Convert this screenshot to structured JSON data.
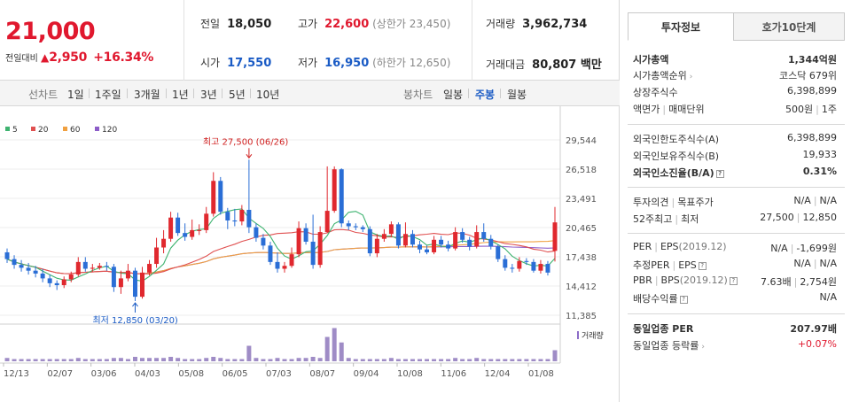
{
  "price": {
    "current": "21,000",
    "change_label": "전일대비",
    "change_arrow": "▲",
    "change_value": "2,950",
    "change_pct": "+16.34%",
    "prev_close_label": "전일",
    "prev_close": "18,050",
    "open_label": "시가",
    "open": "17,550",
    "high_label": "고가",
    "high": "22,600",
    "upper_limit": "(상한가 23,450)",
    "low_label": "저가",
    "low": "16,950",
    "lower_limit": "(하한가 12,650)",
    "volume_label": "거래량",
    "volume": "3,962,734",
    "amount_label": "거래대금",
    "amount": "80,807 백만"
  },
  "tabs": {
    "line_label": "선차트",
    "line_periods": [
      "1일",
      "1주일",
      "3개월",
      "1년",
      "3년",
      "5년",
      "10년"
    ],
    "candle_label": "봉차트",
    "candle_periods": [
      "일봉",
      "주봉",
      "월봉"
    ],
    "candle_active": "주봉"
  },
  "chart_data": {
    "type": "candlestick",
    "legend": [
      "5",
      "20",
      "60",
      "120"
    ],
    "legend_colors": [
      "#3eb370",
      "#e05050",
      "#f0a040",
      "#8c5cc8"
    ],
    "y_ticks": [
      "29,544",
      "26,518",
      "23,491",
      "20,465",
      "17,438",
      "14,412",
      "11,385"
    ],
    "ylim": [
      11385,
      29544
    ],
    "x_ticks": [
      "12/13",
      "02/07",
      "03/06",
      "04/03",
      "05/08",
      "06/05",
      "07/03",
      "08/07",
      "09/04",
      "10/08",
      "11/06",
      "12/04",
      "01/08"
    ],
    "high_annotation": "최고 27,500 (06/26)",
    "low_annotation": "최저 12,850 (03/20)",
    "volume_label": "거래량",
    "candles": [
      [
        17900,
        17200,
        18300,
        16800
      ],
      [
        17200,
        16600,
        17600,
        16200
      ],
      [
        16600,
        16300,
        17100,
        15900
      ],
      [
        16300,
        16000,
        16800,
        15600
      ],
      [
        16000,
        15700,
        16500,
        15300
      ],
      [
        15700,
        15200,
        16200,
        14800
      ],
      [
        15200,
        14700,
        15600,
        14300
      ],
      [
        14700,
        14500,
        15000,
        14000
      ],
      [
        14500,
        15100,
        15400,
        14200
      ],
      [
        15100,
        15600,
        15900,
        14800
      ],
      [
        15600,
        16900,
        17400,
        15400
      ],
      [
        16900,
        16200,
        17400,
        15900
      ],
      [
        16200,
        16300,
        16700,
        15900
      ],
      [
        16300,
        16500,
        16800,
        16100
      ],
      [
        16500,
        16400,
        16900,
        16000
      ],
      [
        16400,
        14300,
        16700,
        13800
      ],
      [
        14300,
        15200,
        16000,
        13600
      ],
      [
        15200,
        16000,
        16700,
        14900
      ],
      [
        16000,
        13300,
        16300,
        12850
      ],
      [
        13300,
        15800,
        16400,
        13100
      ],
      [
        15800,
        16700,
        17100,
        15500
      ],
      [
        16700,
        18400,
        19400,
        16300
      ],
      [
        18400,
        19300,
        20200,
        17800
      ],
      [
        19300,
        21500,
        22100,
        19000
      ],
      [
        21500,
        19900,
        22000,
        19600
      ],
      [
        19900,
        19500,
        20900,
        19100
      ],
      [
        19500,
        20200,
        21300,
        19200
      ],
      [
        20200,
        20200,
        20800,
        19700
      ],
      [
        20200,
        21900,
        22600,
        19900
      ],
      [
        21900,
        25300,
        26200,
        21600
      ],
      [
        25300,
        22100,
        25700,
        21800
      ],
      [
        22100,
        21200,
        22500,
        20300
      ],
      [
        21200,
        21100,
        22400,
        20600
      ],
      [
        21100,
        22300,
        22800,
        20700
      ],
      [
        22300,
        20500,
        27500,
        19900
      ],
      [
        20500,
        19400,
        20900,
        19000
      ],
      [
        19400,
        18600,
        19800,
        18200
      ],
      [
        18600,
        16900,
        19000,
        16600
      ],
      [
        16900,
        16200,
        17900,
        15800
      ],
      [
        16200,
        16500,
        16900,
        15800
      ],
      [
        16500,
        17700,
        18400,
        16300
      ],
      [
        17700,
        20400,
        21100,
        17400
      ],
      [
        20400,
        19000,
        20900,
        18700
      ],
      [
        19000,
        16600,
        21800,
        16200
      ],
      [
        16600,
        20000,
        20600,
        16300
      ],
      [
        20000,
        22200,
        26800,
        19900
      ],
      [
        22200,
        26500,
        26800,
        22000
      ],
      [
        26500,
        20900,
        26600,
        20500
      ],
      [
        20900,
        20600,
        21200,
        20200
      ],
      [
        20600,
        20500,
        20900,
        20200
      ],
      [
        20500,
        20300,
        20700,
        20000
      ],
      [
        20300,
        17800,
        20600,
        17500
      ],
      [
        17800,
        19300,
        19800,
        17400
      ],
      [
        19300,
        19800,
        20300,
        19000
      ],
      [
        19800,
        20800,
        21100,
        19500
      ],
      [
        20800,
        18600,
        21000,
        18300
      ],
      [
        18600,
        19800,
        21000,
        18400
      ],
      [
        19800,
        18700,
        20200,
        18400
      ],
      [
        18700,
        18200,
        19100,
        17800
      ],
      [
        18200,
        17900,
        18600,
        17700
      ],
      [
        17900,
        19200,
        19600,
        17700
      ],
      [
        19200,
        18700,
        19600,
        18400
      ],
      [
        18700,
        18300,
        19100,
        18000
      ],
      [
        18300,
        20000,
        20500,
        18100
      ],
      [
        20000,
        19200,
        20400,
        18900
      ],
      [
        19200,
        18500,
        19500,
        18100
      ],
      [
        18500,
        20000,
        20700,
        18300
      ],
      [
        20000,
        19300,
        20900,
        19000
      ],
      [
        19300,
        18500,
        19700,
        18200
      ],
      [
        18500,
        17200,
        18700,
        16900
      ],
      [
        17200,
        16300,
        17600,
        16000
      ],
      [
        16300,
        16200,
        16700,
        15800
      ],
      [
        16200,
        17000,
        17400,
        15900
      ],
      [
        17000,
        16900,
        17300,
        16600
      ],
      [
        16900,
        16000,
        17200,
        15800
      ],
      [
        16000,
        16700,
        17100,
        15700
      ],
      [
        16700,
        15800,
        17000,
        15500
      ],
      [
        18050,
        21000,
        22600,
        16950
      ]
    ],
    "volume": [
      3,
      2,
      2,
      2,
      2,
      2,
      2,
      2,
      2,
      2,
      3,
      2,
      2,
      2,
      2,
      3,
      3,
      2,
      4,
      3,
      3,
      3,
      3,
      4,
      3,
      2,
      2,
      2,
      3,
      4,
      3,
      2,
      2,
      2,
      5,
      3,
      2,
      2,
      3,
      2,
      2,
      3,
      3,
      4,
      3,
      6,
      7,
      5,
      3,
      2,
      2,
      2,
      2,
      2,
      3,
      2,
      2,
      2,
      2,
      2,
      2,
      2,
      2,
      3,
      2,
      2,
      3,
      2,
      2,
      2,
      2,
      2,
      2,
      2,
      2,
      2,
      2,
      10
    ],
    "volume_peaks": {
      "34": 14,
      "45": 22,
      "46": 30,
      "47": 17
    }
  },
  "info": {
    "tab_active": "투자정보",
    "tab_other": "호가10단계",
    "market_cap_label": "시가총액",
    "market_cap": "1,344억원",
    "cap_rank_label": "시가총액순위",
    "cap_rank": "코스닥 679위",
    "shares_label": "상장주식수",
    "shares": "6,398,899",
    "par_label": "액면가",
    "trade_unit_label": "매매단위",
    "par": "500원",
    "trade_unit": "1주",
    "foreign_limit_label": "외국인한도주식수(A)",
    "foreign_limit": "6,398,899",
    "foreign_hold_label": "외국인보유주식수(B)",
    "foreign_hold": "19,933",
    "foreign_ratio_label": "외국인소진율(B/A)",
    "foreign_ratio": "0.31%",
    "opinion_label": "투자의견",
    "target_label": "목표주가",
    "opinion": "N/A",
    "target": "N/A",
    "w52_high_label": "52주최고",
    "w52_low_label": "최저",
    "w52_high": "27,500",
    "w52_low": "12,850",
    "per_label": "PER",
    "eps_label": "EPS",
    "eps_year": "(2019.12)",
    "per": "N/A",
    "eps": "-1,699원",
    "est_per_label": "추정PER",
    "est_eps_label": "EPS",
    "est_per": "N/A",
    "est_eps": "N/A",
    "pbr_label": "PBR",
    "bps_label": "BPS",
    "bps_year": "(2019.12)",
    "pbr": "7.63배",
    "bps": "2,754원",
    "div_label": "배당수익률",
    "div": "N/A",
    "ind_per_label": "동일업종 PER",
    "ind_per": "207.97배",
    "ind_rate_label": "동일업종 등락률",
    "ind_rate": "+0.07%"
  }
}
